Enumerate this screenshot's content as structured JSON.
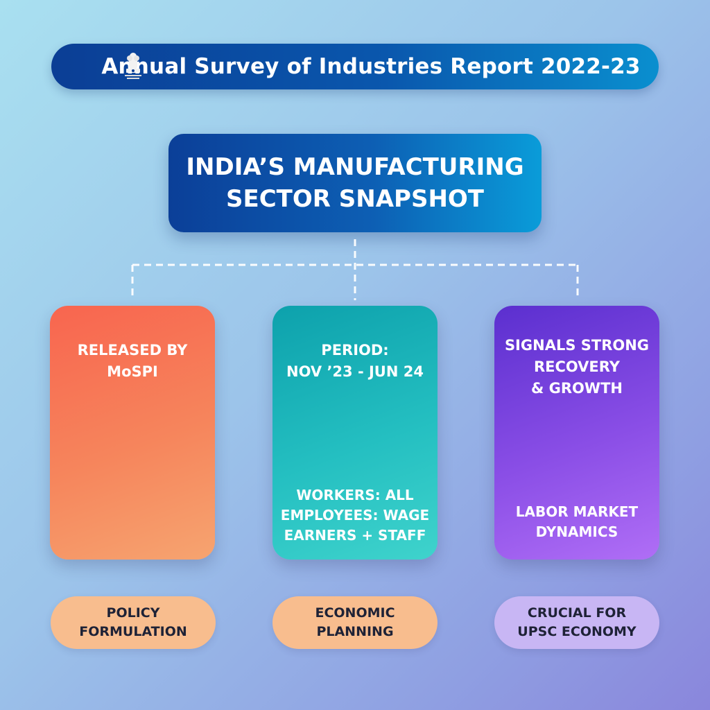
{
  "header": {
    "title": "Annual Survey of Industries Report 2022-23",
    "emblem_icon": "national-emblem-icon"
  },
  "main_title": {
    "line1": "INDIA’S MANUFACTURING",
    "line2": "SECTOR SNAPSHOT"
  },
  "cards": [
    {
      "top_lines": [
        "RELEASED BY",
        "MoSPI"
      ],
      "bottom_lines": [],
      "color": "#f6855c"
    },
    {
      "top_lines": [
        "PERIOD:",
        "NOV ’23 - JUN 24"
      ],
      "bottom_lines": [
        "WORKERS: ALL",
        "EMPLOYEES: WAGE",
        "EARNERS + STAFF"
      ],
      "color": "#24bfc1"
    },
    {
      "top_lines": [
        "SIGNALS STRONG",
        "RECOVERY",
        "& GROWTH"
      ],
      "bottom_lines": [
        "LABOR MARKET",
        "DYNAMICS"
      ],
      "color": "#8a4ee6"
    }
  ],
  "pills": [
    {
      "lines": [
        "POLICY",
        "FORMULATION"
      ],
      "color": "#f8bd8e"
    },
    {
      "lines": [
        "ECONOMIC",
        "PLANNING"
      ],
      "color": "#f8bd8e"
    },
    {
      "lines": [
        "CRUCIAL FOR",
        "UPSC ECONOMY"
      ],
      "color": "#c8b6f4"
    }
  ]
}
